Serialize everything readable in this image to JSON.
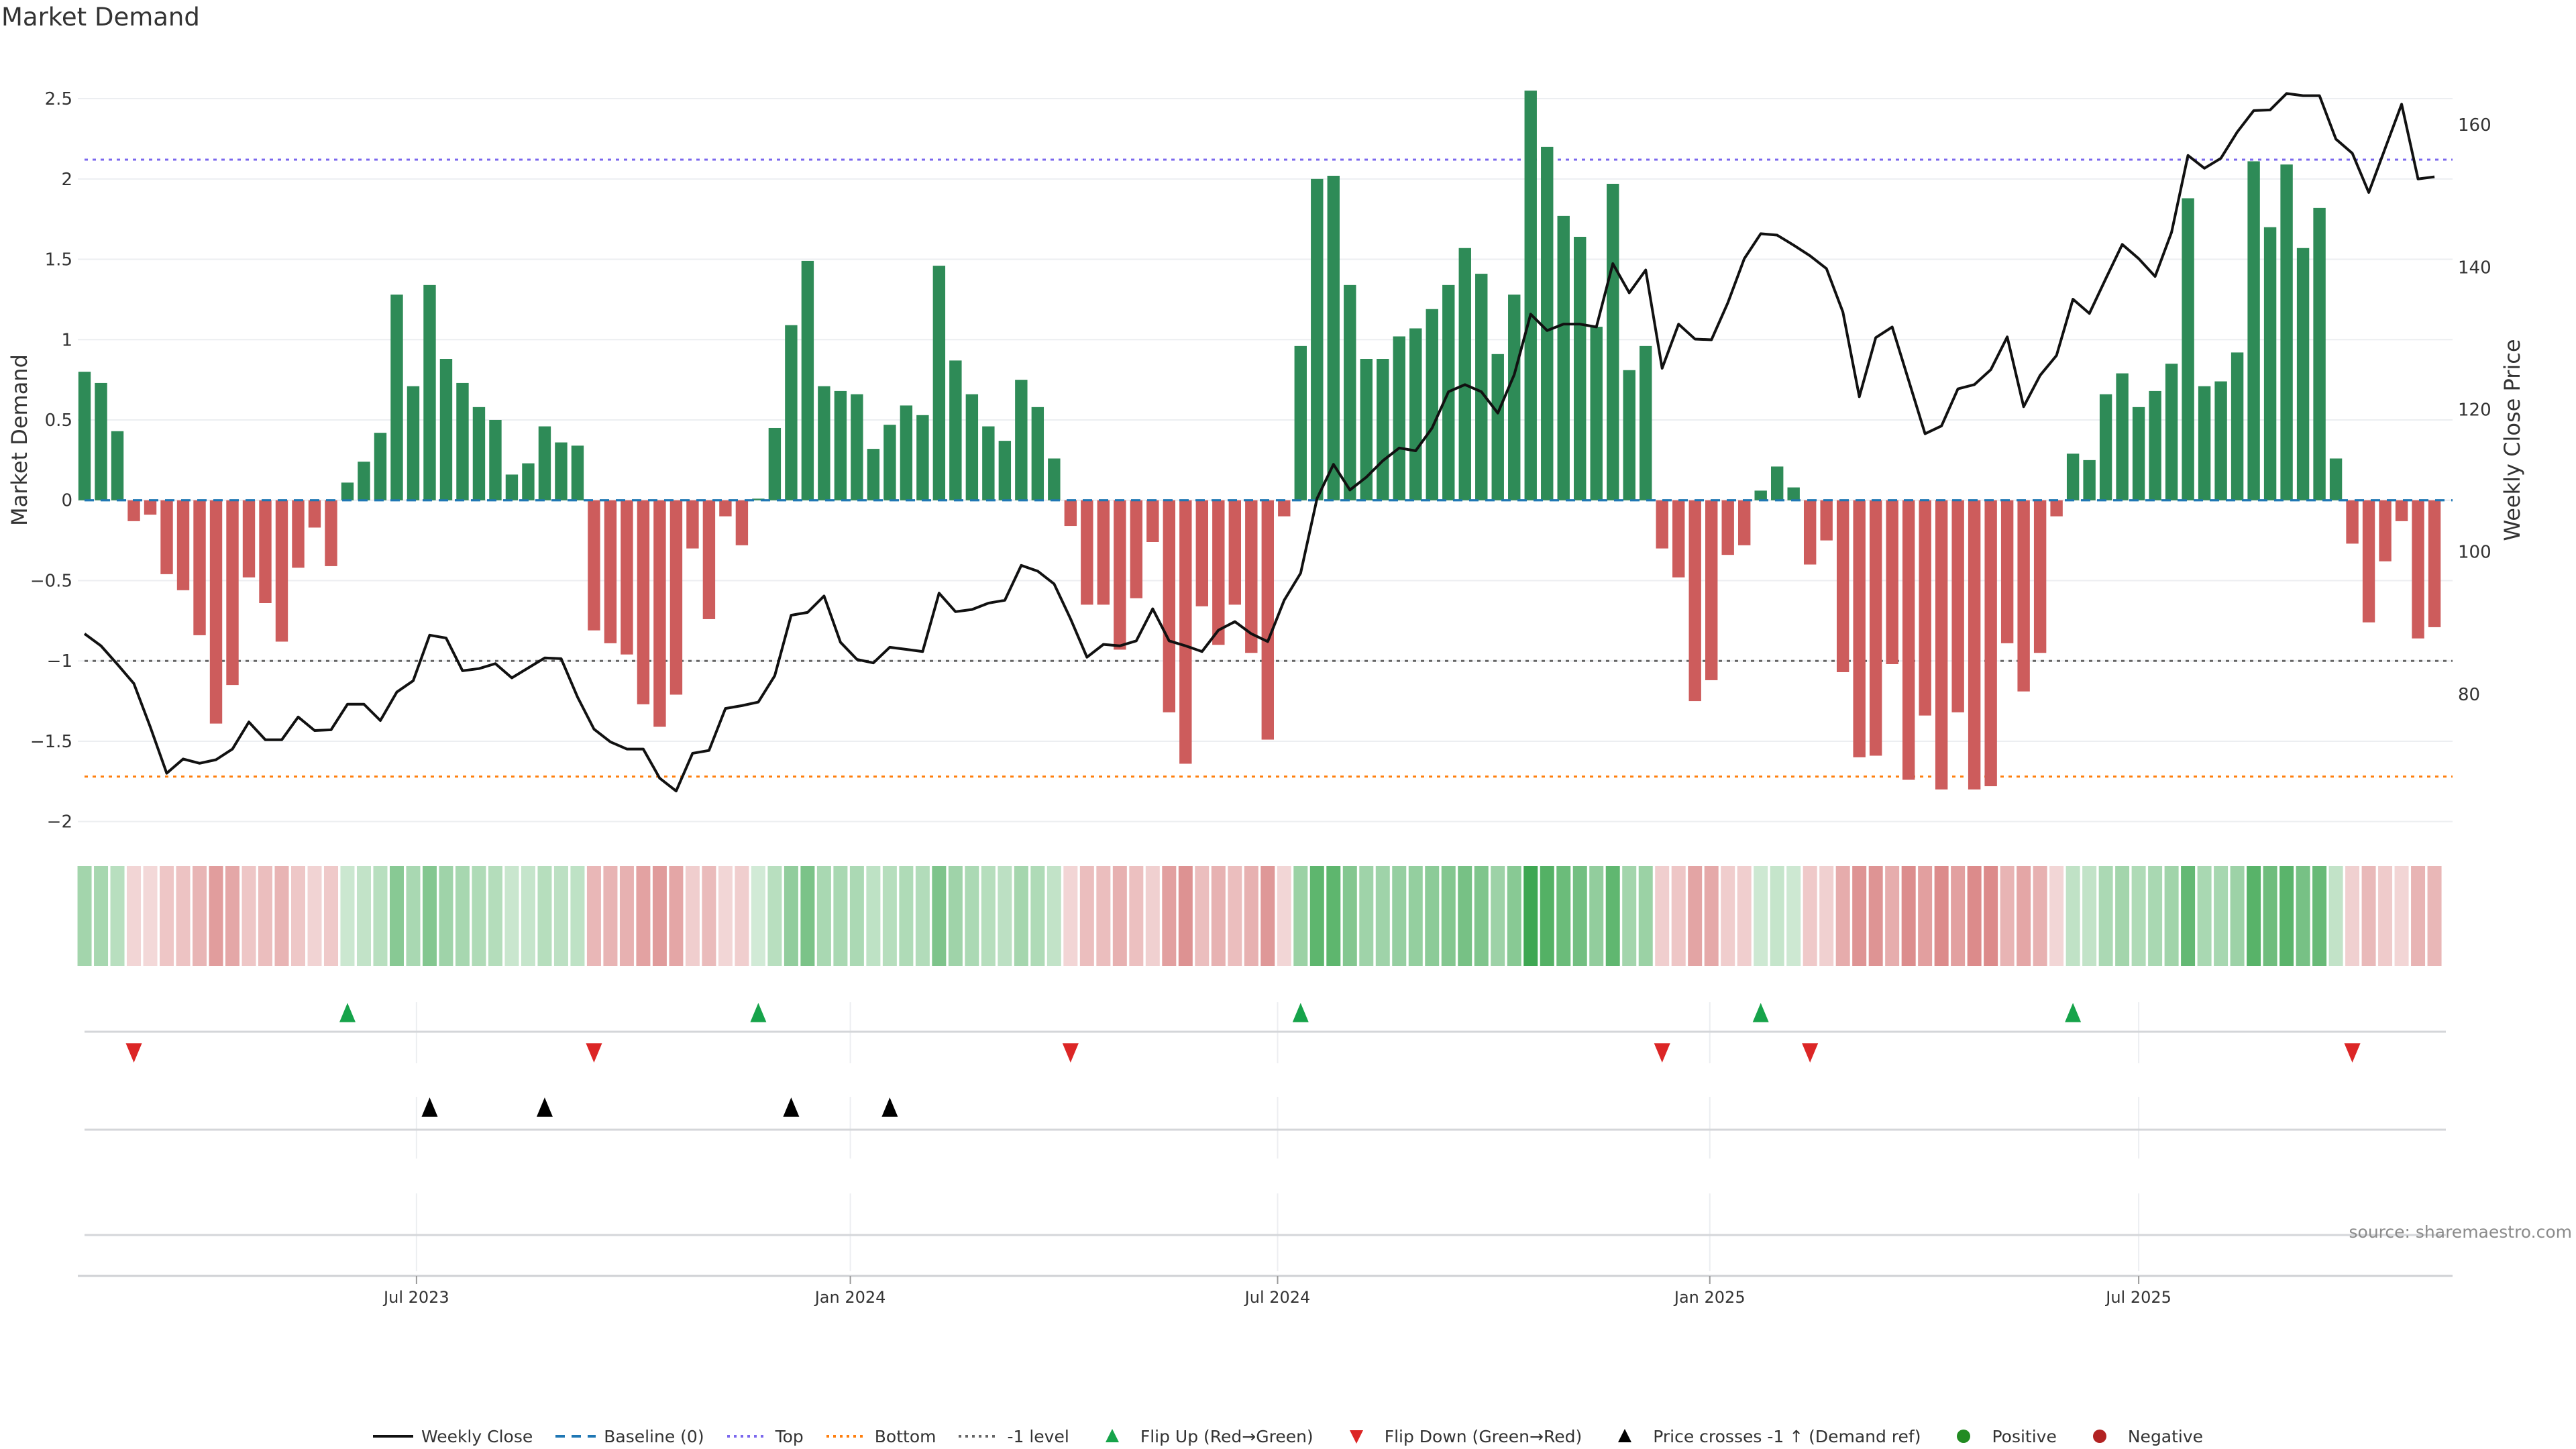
{
  "title": "Market Demand",
  "source": "source: sharemaestro.com",
  "chart_data": {
    "type": "bar",
    "title": "Market Demand",
    "ylabel": "Market Demand",
    "y2label": "Weekly Close Price",
    "ylim": [
      -2.16,
      2.78
    ],
    "y2lim": [
      58.5,
      170
    ],
    "xlim": [
      -0.41,
      144.1
    ],
    "grid": true,
    "yticks": [
      {
        "v": 2.5,
        "label": "2.5"
      },
      {
        "v": 2,
        "label": "2"
      },
      {
        "v": 1.5,
        "label": "1.5"
      },
      {
        "v": 1,
        "label": "1"
      },
      {
        "v": 0.5,
        "label": "0.5"
      },
      {
        "v": 0,
        "label": "0"
      },
      {
        "v": -0.5,
        "label": "−0.5"
      },
      {
        "v": -1,
        "label": "−1"
      },
      {
        "v": -1.5,
        "label": "−1.5"
      },
      {
        "v": -2,
        "label": "−2"
      }
    ],
    "y2ticks": [
      {
        "v": 160,
        "label": "160"
      },
      {
        "v": 140,
        "label": "140"
      },
      {
        "v": 120,
        "label": "120"
      },
      {
        "v": 100,
        "label": "100"
      },
      {
        "v": 80,
        "label": "80"
      }
    ],
    "xticks": [
      {
        "week": 20.2,
        "label": "Jul 2023"
      },
      {
        "week": 46.6,
        "label": "Jan 2024"
      },
      {
        "week": 72.6,
        "label": "Jul 2024"
      },
      {
        "week": 98.9,
        "label": "Jan 2025"
      },
      {
        "week": 125.0,
        "label": "Jul 2025"
      }
    ],
    "levels": {
      "top": 2.12,
      "bottom": -1.72,
      "minus1": -1,
      "baseline": 0
    },
    "demand": [
      0.8,
      0.73,
      0.43,
      -0.13,
      -0.09,
      -0.46,
      -0.56,
      -0.84,
      -1.39,
      -1.15,
      -0.48,
      -0.64,
      -0.88,
      -0.42,
      -0.17,
      -0.41,
      0.11,
      0.24,
      0.42,
      1.28,
      0.71,
      1.34,
      0.88,
      0.73,
      0.58,
      0.5,
      0.16,
      0.23,
      0.46,
      0.36,
      0.34,
      -0.81,
      -0.89,
      -0.96,
      -1.27,
      -1.41,
      -1.21,
      -0.3,
      -0.74,
      -0.1,
      -0.28,
      0.01,
      0.45,
      1.09,
      1.49,
      0.71,
      0.68,
      0.66,
      0.32,
      0.47,
      0.59,
      0.53,
      1.46,
      0.87,
      0.66,
      0.46,
      0.37,
      0.75,
      0.58,
      0.26,
      -0.16,
      -0.65,
      -0.65,
      -0.93,
      -0.61,
      -0.26,
      -1.32,
      -1.64,
      -0.66,
      -0.9,
      -0.65,
      -0.95,
      -1.49,
      -0.1,
      0.96,
      2.0,
      2.02,
      1.34,
      0.88,
      0.88,
      1.02,
      1.07,
      1.19,
      1.34,
      1.57,
      1.41,
      0.91,
      1.28,
      2.55,
      2.2,
      1.77,
      1.64,
      1.08,
      1.97,
      0.81,
      0.96,
      -0.3,
      -0.48,
      -1.25,
      -1.12,
      -0.34,
      -0.28,
      0.06,
      0.21,
      0.08,
      -0.4,
      -0.25,
      -1.07,
      -1.6,
      -1.59,
      -1.02,
      -1.74,
      -1.34,
      -1.8,
      -1.32,
      -1.8,
      -1.78,
      -0.89,
      -1.19,
      -0.95,
      -0.1,
      0.29,
      0.25,
      0.66,
      0.79,
      0.58,
      0.68,
      0.85,
      1.88,
      0.71,
      0.74,
      0.92,
      2.11,
      1.7,
      2.09,
      1.57,
      1.82,
      0.26,
      -0.27,
      -0.76,
      -0.38,
      -0.13,
      -0.86,
      -0.79
    ],
    "price": [
      88.5,
      86.8,
      84.2,
      81.5,
      75.4,
      68.9,
      70.9,
      70.3,
      70.8,
      72.3,
      76.1,
      73.6,
      73.6,
      76.8,
      74.9,
      75.0,
      78.6,
      78.6,
      76.3,
      80.3,
      81.9,
      88.3,
      87.9,
      83.3,
      83.6,
      84.3,
      82.3,
      83.7,
      85.1,
      85.0,
      79.6,
      75.1,
      73.3,
      72.3,
      72.3,
      68.2,
      66.4,
      71.7,
      72.1,
      78.0,
      78.4,
      78.9,
      82.6,
      91.1,
      91.5,
      93.8,
      87.3,
      84.9,
      84.4,
      86.6,
      86.3,
      86.0,
      94.2,
      91.6,
      91.9,
      92.8,
      93.2,
      98.1,
      97.3,
      95.5,
      90.6,
      85.2,
      87.0,
      86.8,
      87.5,
      92.0,
      87.5,
      86.8,
      86.0,
      89.0,
      90.2,
      88.5,
      87.4,
      93.2,
      97.0,
      107.5,
      112.3,
      108.7,
      110.5,
      112.8,
      114.6,
      114.2,
      117.4,
      122.5,
      123.5,
      122.5,
      119.5,
      124.9,
      133.4,
      131.1,
      132.0,
      132.0,
      131.6,
      140.5,
      136.4,
      139.6,
      125.8,
      132.0,
      129.9,
      129.8,
      135.0,
      141.2,
      144.7,
      144.5,
      143.1,
      141.6,
      139.8,
      133.7,
      121.8,
      130.1,
      131.6,
      124.1,
      116.6,
      117.7,
      122.9,
      123.5,
      125.6,
      130.2,
      120.4,
      124.8,
      127.6,
      135.5,
      133.5,
      138.4,
      143.2,
      141.2,
      138.7,
      144.9,
      155.7,
      153.9,
      155.3,
      159.0,
      162.0,
      162.1,
      164.4,
      164.1,
      164.1,
      158.0,
      156.0,
      150.5,
      156.7,
      162.9,
      152.4,
      152.7
    ],
    "flip_up": [
      16,
      41,
      74,
      102,
      121
    ],
    "flip_down": [
      3,
      31,
      60,
      96,
      105,
      138
    ],
    "price_cross": [
      21,
      28,
      43,
      49
    ],
    "colors": {
      "positive_bar": "#2e8b57",
      "negative_bar": "#cd5c5c",
      "price": "#111111",
      "baseline": "#1f77b4",
      "top": "#7b68ee",
      "bottom": "#ff7f0e",
      "minus1": "#666666",
      "flip_up": "#16a34a",
      "flip_down": "#dc2626",
      "price_cross": "#000000",
      "positive": "#228b22",
      "negative": "#b22222",
      "heat_pos": [
        46,
        160,
        67
      ],
      "heat_neg": [
        205,
        92,
        92
      ]
    },
    "legend": [
      {
        "label": "Weekly Close",
        "kind": "line",
        "color": "#111111"
      },
      {
        "label": "Baseline (0)",
        "kind": "dash",
        "color": "#1f77b4"
      },
      {
        "label": "Top",
        "kind": "dot",
        "color": "#7b68ee"
      },
      {
        "label": "Bottom",
        "kind": "dot",
        "color": "#ff7f0e"
      },
      {
        "label": "-1 level",
        "kind": "dot",
        "color": "#666666"
      },
      {
        "label": "Flip Up (Red→Green)",
        "kind": "up",
        "color": "#16a34a"
      },
      {
        "label": "Flip Down (Green→Red)",
        "kind": "down",
        "color": "#dc2626"
      },
      {
        "label": "Price crosses -1 ↑ (Demand ref)",
        "kind": "up",
        "color": "#000000"
      },
      {
        "label": "Positive",
        "kind": "circle",
        "color": "#228b22"
      },
      {
        "label": "Negative",
        "kind": "circle",
        "color": "#b22222"
      }
    ]
  }
}
